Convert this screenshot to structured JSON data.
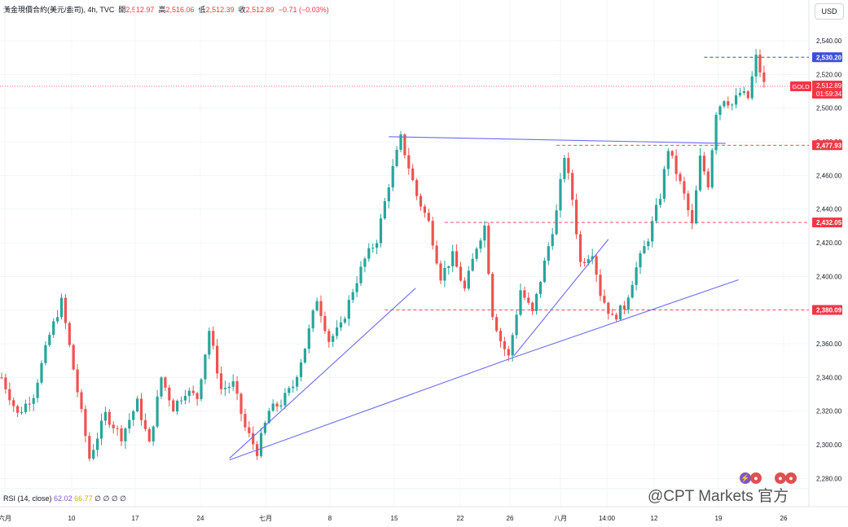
{
  "header": {
    "symbol": "黃金現價合約(美元/盎司)",
    "interval": "4h",
    "source": "TVC",
    "open_label": "開",
    "open_value": "2,512.97",
    "high_label": "高",
    "high_value": "2,516.06",
    "low_label": "低",
    "low_value": "2,512.39",
    "close_label": "收",
    "close_value": "2,512.89",
    "change": "−0.71 (−0.03%)"
  },
  "currency_button": "USD",
  "rsi_legend": {
    "name": "RSI (14, close)",
    "v1": "62.02",
    "v2": "66.77",
    "extra": "∅ ∅ ∅ ∅"
  },
  "watermark": "@CPT Markets 官方",
  "colors": {
    "up": "#26a69a",
    "down": "#ef5350",
    "trendline": "#6a6af5",
    "level": "#f23645",
    "current_price_line": "#f23645"
  },
  "chart_data": {
    "type": "candlestick",
    "symbol": "GOLD",
    "ylim": [
      2273,
      2547
    ],
    "y_ticks": [
      "2,540.00",
      "2,520.00",
      "2,500.00",
      "2,480.00",
      "2,460.00",
      "2,440.00",
      "2,420.00",
      "2,400.00",
      "2,380.00",
      "2,360.00",
      "2,340.00",
      "2,320.00",
      "2,300.00",
      "2,280.00"
    ],
    "x_ticks": [
      "六月",
      "10",
      "17",
      "24",
      "七月",
      "8",
      "15",
      "22",
      "26",
      "八月",
      "14:00",
      "12",
      "19",
      "26"
    ],
    "anchors": [
      [
        0,
        2340
      ],
      [
        4,
        2318
      ],
      [
        8,
        2330
      ],
      [
        12,
        2365
      ],
      [
        15,
        2385
      ],
      [
        18,
        2345
      ],
      [
        22,
        2292
      ],
      [
        26,
        2318
      ],
      [
        30,
        2305
      ],
      [
        34,
        2325
      ],
      [
        37,
        2300
      ],
      [
        40,
        2340
      ],
      [
        43,
        2322
      ],
      [
        46,
        2332
      ],
      [
        49,
        2328
      ],
      [
        52,
        2368
      ],
      [
        55,
        2333
      ],
      [
        58,
        2336
      ],
      [
        61,
        2310
      ],
      [
        64,
        2296
      ],
      [
        67,
        2320
      ],
      [
        70,
        2325
      ],
      [
        73,
        2335
      ],
      [
        76,
        2358
      ],
      [
        79,
        2387
      ],
      [
        82,
        2362
      ],
      [
        85,
        2370
      ],
      [
        88,
        2392
      ],
      [
        91,
        2410
      ],
      [
        94,
        2422
      ],
      [
        97,
        2455
      ],
      [
        100,
        2482
      ],
      [
        102,
        2465
      ],
      [
        104,
        2448
      ],
      [
        107,
        2432
      ],
      [
        110,
        2400
      ],
      [
        113,
        2412
      ],
      [
        116,
        2392
      ],
      [
        119,
        2418
      ],
      [
        121,
        2430
      ],
      [
        123,
        2378
      ],
      [
        125,
        2362
      ],
      [
        127,
        2352
      ],
      [
        130,
        2392
      ],
      [
        133,
        2378
      ],
      [
        136,
        2408
      ],
      [
        139,
        2438
      ],
      [
        141,
        2472
      ],
      [
        143,
        2446
      ],
      [
        145,
        2408
      ],
      [
        148,
        2415
      ],
      [
        150,
        2390
      ],
      [
        153,
        2375
      ],
      [
        156,
        2382
      ],
      [
        159,
        2405
      ],
      [
        162,
        2423
      ],
      [
        165,
        2448
      ],
      [
        167,
        2476
      ],
      [
        169,
        2462
      ],
      [
        171,
        2448
      ],
      [
        173,
        2430
      ],
      [
        175,
        2470
      ],
      [
        177,
        2455
      ],
      [
        179,
        2498
      ],
      [
        181,
        2506
      ],
      [
        183,
        2502
      ],
      [
        185,
        2509
      ],
      [
        187,
        2506
      ],
      [
        189,
        2530
      ],
      [
        191,
        2514
      ]
    ],
    "total_bars": 192,
    "current_price": "2,512.89",
    "price_badges": [
      {
        "label": "GOLD",
        "value": "2,512.89",
        "countdown": "01:59:34"
      },
      {
        "value": "2,530.20"
      },
      {
        "value": "2,477.93"
      },
      {
        "value": "2,432.05"
      },
      {
        "value": "2,380.09"
      }
    ],
    "horizontal_levels": [
      {
        "price": 2530.2,
        "from_bar": 176
      },
      {
        "price": 2477.93,
        "from_bar": 139
      },
      {
        "price": 2432.05,
        "from_bar": 111
      },
      {
        "price": 2380.09,
        "from_bar": 96
      }
    ],
    "trendlines": [
      {
        "x1": 57.1,
        "y1": 2291,
        "x2": 128.4,
        "y2": 2352
      },
      {
        "x1": 128.4,
        "y1": 2352,
        "x2": 184.6,
        "y2": 2398
      },
      {
        "x1": 57.1,
        "y1": 2292,
        "x2": 103.7,
        "y2": 2393
      },
      {
        "x1": 128.4,
        "y1": 2353,
        "x2": 152.0,
        "y2": 2422
      },
      {
        "x1": 97.0,
        "y1": 2483,
        "x2": 181.4,
        "y2": 2479
      }
    ],
    "oscillator": {
      "name": "RSI (14, close)",
      "value": "62.02",
      "ma": "66.77"
    }
  }
}
